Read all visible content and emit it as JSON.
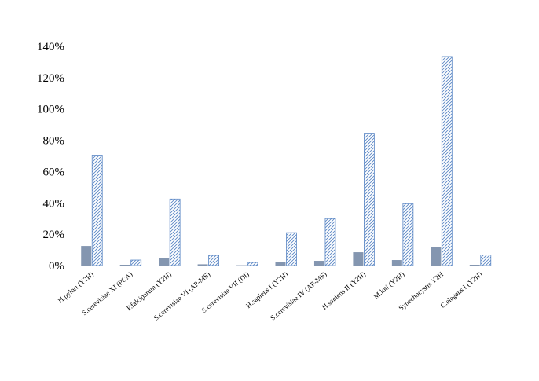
{
  "chart_data": {
    "type": "bar",
    "title": "",
    "xlabel": "",
    "ylabel": "",
    "ylim": [
      0,
      140
    ],
    "yticks": [
      "0%",
      "20%",
      "40%",
      "60%",
      "80%",
      "100%",
      "120%",
      "140%"
    ],
    "grid": false,
    "legend": "none",
    "categories": [
      "H.pylori (Y2H)",
      "S.cerevisiae XI (PCA)",
      "P.falciparum (Y2H)",
      "S.cerevisiae VI (AP-MS)",
      "S.cerevisiae  VII (DI)",
      "H.sapiens I (Y2H)",
      "S.cerevisiae IV (AP-MS)",
      "H.sapiens II (Y2H)",
      "M.loti (Y2H)",
      "Synechocystis  Y2H",
      "C.elegans I (Y2H)"
    ],
    "series": [
      {
        "style": "solid",
        "color": "#8496b0",
        "values": [
          12.5,
          0.5,
          5,
          0.8,
          0.2,
          2.2,
          3,
          8.5,
          3.5,
          12,
          0.5
        ]
      },
      {
        "style": "hatched",
        "color": "#5b87c5",
        "values": [
          70.5,
          3.5,
          42.5,
          6.5,
          2,
          21,
          30,
          84.5,
          39.5,
          133.5,
          6.8
        ]
      }
    ]
  }
}
